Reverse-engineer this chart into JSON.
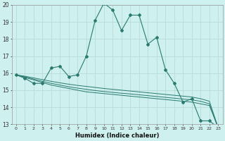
{
  "x": [
    0,
    1,
    2,
    3,
    4,
    5,
    6,
    7,
    8,
    9,
    10,
    11,
    12,
    13,
    14,
    15,
    16,
    17,
    18,
    19,
    20,
    21,
    22,
    23
  ],
  "line1": [
    15.9,
    15.7,
    15.4,
    15.4,
    16.3,
    16.4,
    15.8,
    15.9,
    17.0,
    19.1,
    20.1,
    19.7,
    18.5,
    19.4,
    19.4,
    17.7,
    18.1,
    16.2,
    15.4,
    14.3,
    14.5,
    13.2,
    13.2,
    12.8
  ],
  "line2": [
    15.9,
    15.75,
    15.6,
    15.45,
    15.3,
    15.2,
    15.1,
    15.0,
    14.9,
    14.85,
    14.8,
    14.75,
    14.7,
    14.65,
    14.6,
    14.55,
    14.5,
    14.45,
    14.4,
    14.35,
    14.3,
    14.2,
    14.1,
    12.8
  ],
  "line3": [
    15.9,
    15.78,
    15.65,
    15.52,
    15.4,
    15.3,
    15.2,
    15.12,
    15.05,
    14.98,
    14.92,
    14.87,
    14.82,
    14.78,
    14.73,
    14.68,
    14.63,
    14.58,
    14.53,
    14.48,
    14.43,
    14.35,
    14.2,
    12.8
  ],
  "line4": [
    15.9,
    15.82,
    15.72,
    15.62,
    15.52,
    15.43,
    15.35,
    15.28,
    15.22,
    15.16,
    15.1,
    15.05,
    15.0,
    14.95,
    14.9,
    14.85,
    14.8,
    14.75,
    14.7,
    14.65,
    14.6,
    14.5,
    14.35,
    12.8
  ],
  "color": "#2a7a70",
  "bg_color": "#cef0ee",
  "grid_color": "#b8dbd8",
  "xlabel": "Humidex (Indice chaleur)",
  "ylim": [
    13,
    20
  ],
  "yticks": [
    13,
    14,
    15,
    16,
    17,
    18,
    19,
    20
  ],
  "xlim_min": -0.5,
  "xlim_max": 23.5
}
